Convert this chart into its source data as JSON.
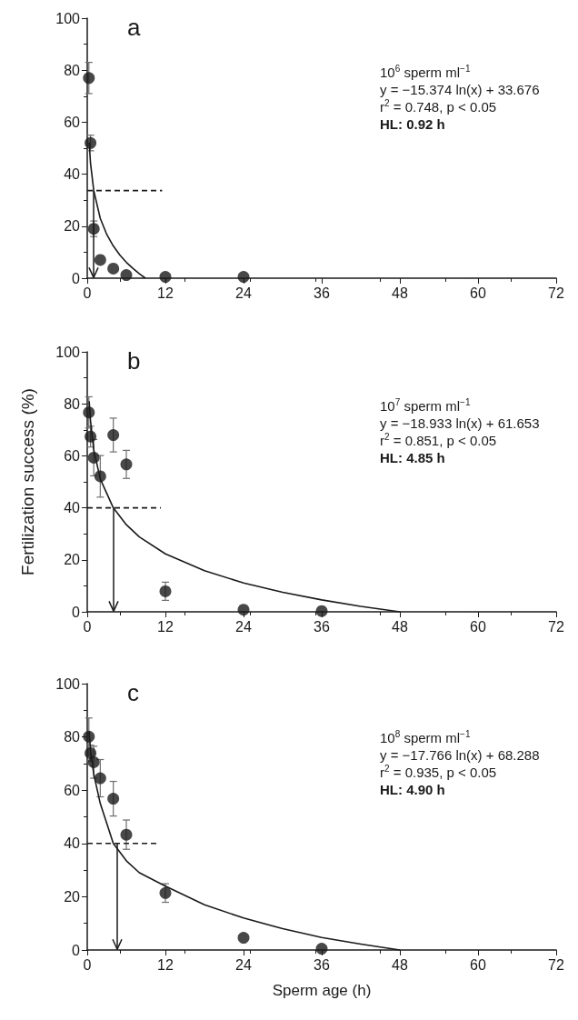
{
  "chart_data": [
    {
      "type": "scatter",
      "title": "a",
      "xlim": [
        0,
        72
      ],
      "xticks": [
        0,
        12,
        24,
        36,
        48,
        60,
        72
      ],
      "ylim": [
        0,
        100
      ],
      "yticks": [
        0,
        20,
        40,
        60,
        80,
        100
      ],
      "grid": false,
      "annotations": [
        "10$^{6}$ sperm ml$^{−1}$",
        "y = −15.374 ln(x) + 33.676",
        "r$^{2}$ = 0.748, p < 0.05",
        "HL: 0.92 h"
      ],
      "ref_lines": [
        {
          "axis": "x",
          "value": 0.92,
          "line_style": "solid",
          "color": "#1a1a1a"
        }
      ],
      "series": [
        {
          "color": "#1a1a1a",
          "marker": "circle",
          "x": [
            0.25,
            0.5,
            1,
            2,
            4,
            6,
            12,
            24
          ],
          "values": [
            77,
            52,
            19,
            7,
            3.7,
            1.2,
            0.5,
            0.5
          ],
          "errors": [
            6,
            3,
            3,
            null,
            null,
            null,
            null,
            null
          ]
        },
        {
          "type": "line",
          "color": "#1a1a1a",
          "line_style": "solid",
          "x": [
            0.3,
            0.5,
            1,
            2,
            3,
            4,
            5,
            6,
            7,
            8,
            8.93
          ],
          "values": [
            52.2,
            44.3,
            33.7,
            23,
            16.8,
            12.4,
            8.9,
            6.1,
            3.8,
            1.7,
            0
          ]
        },
        {
          "type": "line",
          "color": "#1a1a1a",
          "line_style": "dashed",
          "x": [
            0,
            11.5
          ],
          "values": [
            33.7,
            33.7
          ]
        }
      ]
    },
    {
      "type": "scatter",
      "title": "b",
      "ylabel": "Fertilization success (%)",
      "xlim": [
        0,
        72
      ],
      "xticks": [
        0,
        12,
        24,
        36,
        48,
        60,
        72
      ],
      "ylim": [
        0,
        100
      ],
      "yticks": [
        0,
        20,
        40,
        60,
        80,
        100
      ],
      "grid": false,
      "annotations": [
        "10$^{7}$ sperm ml$^{−1}$",
        "y = −18.933 ln(x) + 61.653",
        "r$^{2}$ = 0.851, p < 0.05",
        "HL: 4.85 h"
      ],
      "ref_lines": [
        {
          "axis": "x",
          "value": 4,
          "line_style": "solid",
          "color": "#1a1a1a"
        }
      ],
      "series": [
        {
          "color": "#1a1a1a",
          "marker": "circle",
          "x": [
            0.25,
            0.5,
            1,
            2,
            4,
            6,
            12,
            24,
            36
          ],
          "values": [
            76.7,
            67.4,
            59.3,
            52.1,
            68,
            56.7,
            7.9,
            0.8,
            0.3
          ],
          "errors": [
            6,
            4,
            7,
            8,
            6.5,
            5.4,
            3.5,
            null,
            null
          ]
        },
        {
          "type": "line",
          "color": "#1a1a1a",
          "line_style": "solid",
          "x": [
            0.3,
            0.5,
            1,
            2,
            4,
            6,
            8,
            12,
            18,
            24,
            30,
            36,
            42,
            48
          ],
          "values": [
            81,
            73.5,
            62.3,
            51.1,
            40,
            33.5,
            28.8,
            22.3,
            15.8,
            11.1,
            7.5,
            4.6,
            2.1,
            0
          ]
        },
        {
          "type": "line",
          "color": "#1a1a1a",
          "line_style": "dashed",
          "x": [
            0,
            11.3
          ],
          "values": [
            40,
            40
          ]
        }
      ]
    },
    {
      "type": "scatter",
      "title": "c",
      "xlabel": "Sperm age (h)",
      "xlim": [
        0,
        72
      ],
      "xticks": [
        0,
        12,
        24,
        36,
        48,
        60,
        72
      ],
      "ylim": [
        0,
        100
      ],
      "yticks": [
        0,
        20,
        40,
        60,
        80,
        100
      ],
      "grid": false,
      "annotations": [
        "10$^{8}$ sperm ml$^{−1}$",
        "y = −17.766 ln(x) + 68.288",
        "r$^{2}$ = 0.935, p < 0.05",
        "HL: 4.90 h"
      ],
      "ref_lines": [
        {
          "axis": "x",
          "value": 4.6,
          "line_style": "solid",
          "color": "#1a1a1a"
        }
      ],
      "series": [
        {
          "color": "#1a1a1a",
          "marker": "circle",
          "x": [
            0.25,
            0.5,
            1,
            2,
            4,
            6,
            12,
            24,
            36
          ],
          "values": [
            80.1,
            73.9,
            70.5,
            64.5,
            56.8,
            43.3,
            21.4,
            4.6,
            0.5
          ],
          "errors": [
            7,
            3,
            6,
            7,
            6.5,
            5.5,
            3.5,
            null,
            null
          ]
        },
        {
          "type": "line",
          "color": "#1a1a1a",
          "line_style": "solid",
          "x": [
            0.3,
            0.5,
            1,
            2,
            4,
            6,
            8,
            12,
            18,
            24,
            30,
            36,
            42,
            48
          ],
          "values": [
            82,
            75,
            66,
            55,
            40,
            33.5,
            29,
            24,
            17,
            12,
            8,
            4.7,
            2.2,
            0
          ]
        },
        {
          "type": "line",
          "color": "#1a1a1a",
          "line_style": "dashed",
          "x": [
            0,
            11
          ],
          "values": [
            40,
            40
          ]
        }
      ]
    }
  ]
}
